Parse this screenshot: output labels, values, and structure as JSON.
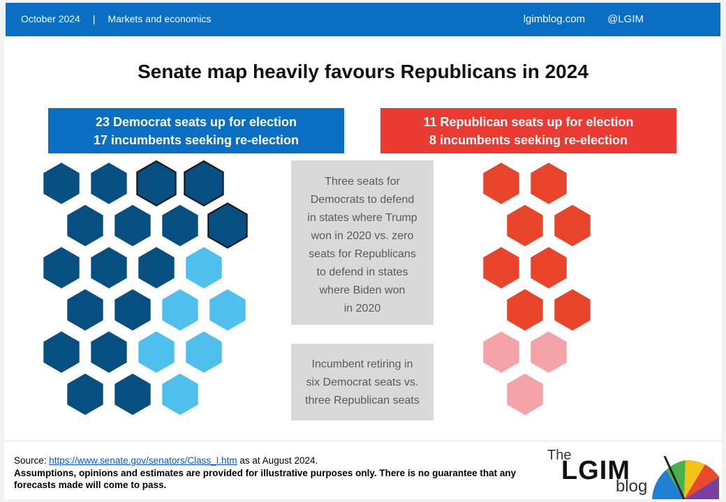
{
  "header": {
    "date": "October 2024",
    "separator": "|",
    "section": "Markets and economics",
    "website": "lgimblog.com",
    "handle": "@LGIM"
  },
  "title": "Senate map heavily favours Republicans in 2024",
  "democrat_banner": {
    "line1": "23 Democrat seats up for election",
    "line2": "17 incumbents seeking re-election"
  },
  "republican_banner": {
    "line1": "11 Republican seats up for election",
    "line2": "8 incumbents seeking re-election"
  },
  "notes": {
    "trump_states": [
      "Three seats for",
      "Democrats to defend",
      "in states where Trump",
      "won in 2020 vs. zero",
      "seats for Republicans",
      "to defend in states",
      "where Biden won",
      "in 2020"
    ],
    "retiring": [
      "Incumbent retiring in",
      "six Democrat seats vs.",
      "three Republican seats"
    ]
  },
  "seats": {
    "democrat_total": 23,
    "democrat_incumbents": 17,
    "democrat_retiring": 6,
    "democrat_trump_states": 3,
    "republican_total": 11,
    "republican_incumbents": 8,
    "republican_retiring": 3,
    "republican_biden_states": 0
  },
  "colors": {
    "dem_incumbent": "#074f80",
    "dem_retiring": "#4fc0ee",
    "rep_incumbent": "#e8432b",
    "rep_retiring": "#f4a3a8",
    "header_blue": "#0a6fc2",
    "rep_banner": "#ea3a32"
  },
  "footer": {
    "source_label": "Source: ",
    "source_link": "https://www.senate.gov/senators/Class_I.htm",
    "source_suffix": " as at August 2024.",
    "disclaimer": "Assumptions,  opinions and estimates are provided for illustrative purposes only. There is no guarantee that any forecasts made will come to pass."
  },
  "logo": {
    "the": "The",
    "lgim": "LGIM",
    "blog": "blog"
  }
}
